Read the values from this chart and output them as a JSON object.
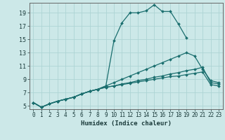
{
  "title": "",
  "xlabel": "Humidex (Indice chaleur)",
  "xlim": [
    -0.5,
    23.5
  ],
  "ylim": [
    4.5,
    20.5
  ],
  "xticks": [
    0,
    1,
    2,
    3,
    4,
    5,
    6,
    7,
    8,
    9,
    10,
    11,
    12,
    13,
    14,
    15,
    16,
    17,
    18,
    19,
    20,
    21,
    22,
    23
  ],
  "yticks": [
    5,
    7,
    9,
    11,
    13,
    15,
    17,
    19
  ],
  "bg_color": "#cce8e8",
  "line_color": "#1a6e6e",
  "grid_color": "#add4d4",
  "lines": [
    {
      "x": [
        0,
        1,
        2,
        3,
        4,
        5,
        6,
        7,
        8,
        9,
        10,
        11,
        12,
        13,
        14,
        15,
        16,
        17,
        18,
        19,
        20,
        21,
        22,
        23
      ],
      "y": [
        5.5,
        4.8,
        5.3,
        5.7,
        6.0,
        6.3,
        6.8,
        7.2,
        7.5,
        8.0,
        14.8,
        17.5,
        19.0,
        19.0,
        19.3,
        20.2,
        19.2,
        19.2,
        17.3,
        15.2,
        null,
        null,
        null,
        null
      ]
    },
    {
      "x": [
        0,
        1,
        2,
        3,
        4,
        5,
        6,
        7,
        8,
        9,
        10,
        11,
        12,
        13,
        14,
        15,
        16,
        17,
        18,
        19,
        20,
        21,
        22,
        23
      ],
      "y": [
        5.5,
        4.8,
        5.3,
        5.7,
        6.0,
        6.3,
        6.8,
        7.2,
        7.5,
        8.0,
        8.5,
        9.0,
        9.5,
        10.0,
        10.5,
        11.0,
        11.5,
        12.0,
        12.5,
        13.0,
        12.5,
        10.5,
        8.8,
        8.5
      ]
    },
    {
      "x": [
        0,
        1,
        2,
        3,
        4,
        5,
        6,
        7,
        8,
        9,
        10,
        11,
        12,
        13,
        14,
        15,
        16,
        17,
        18,
        19,
        20,
        21,
        22,
        23
      ],
      "y": [
        5.5,
        4.8,
        5.3,
        5.7,
        6.0,
        6.3,
        6.8,
        7.2,
        7.5,
        7.8,
        8.0,
        8.3,
        8.5,
        8.8,
        9.0,
        9.3,
        9.5,
        9.8,
        10.0,
        10.3,
        10.5,
        10.8,
        8.5,
        8.3
      ]
    },
    {
      "x": [
        0,
        1,
        2,
        3,
        4,
        5,
        6,
        7,
        8,
        9,
        10,
        11,
        12,
        13,
        14,
        15,
        16,
        17,
        18,
        19,
        20,
        21,
        22,
        23
      ],
      "y": [
        5.5,
        4.8,
        5.3,
        5.7,
        6.0,
        6.3,
        6.8,
        7.2,
        7.5,
        7.8,
        8.0,
        8.2,
        8.4,
        8.6,
        8.8,
        9.0,
        9.2,
        9.4,
        9.5,
        9.7,
        9.9,
        10.1,
        8.2,
        8.0
      ]
    }
  ]
}
